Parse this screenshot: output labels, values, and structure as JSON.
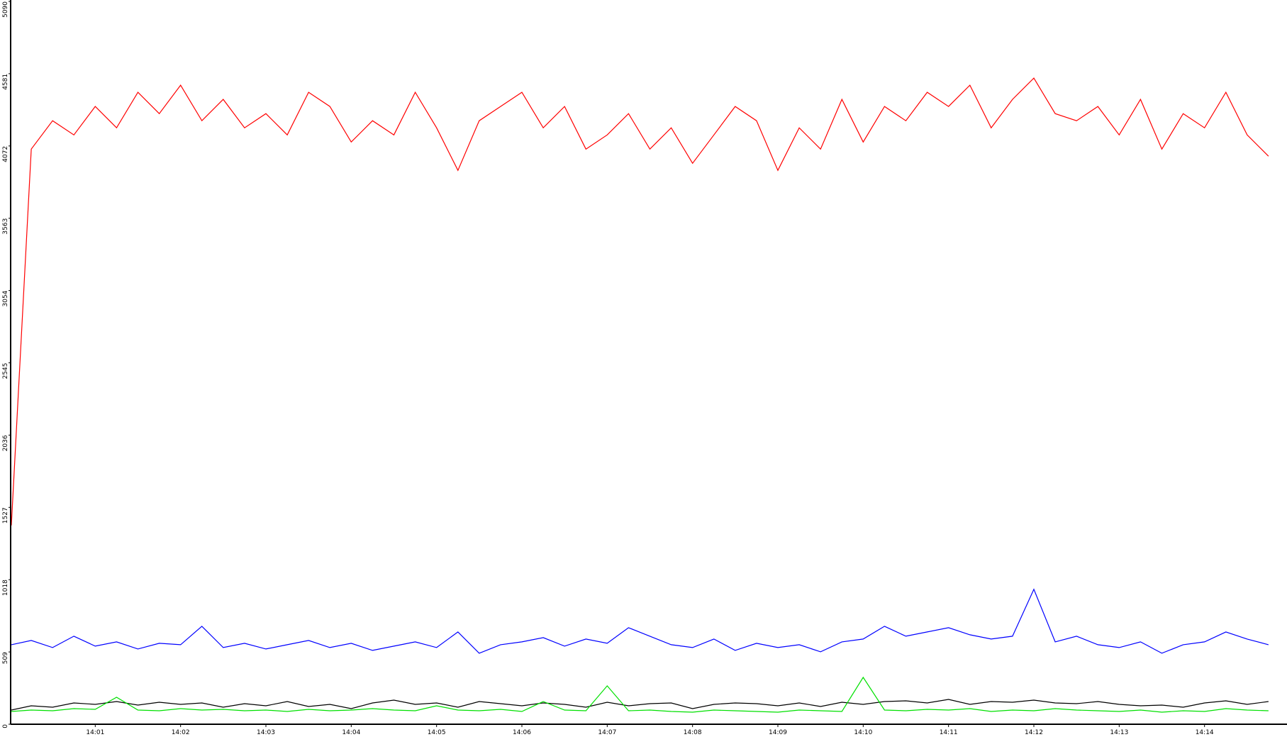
{
  "chart_data": {
    "type": "line",
    "x": [
      "14:00:01",
      "14:00:15",
      "14:00:30",
      "14:00:45",
      "14:01:00",
      "14:01:15",
      "14:01:30",
      "14:01:45",
      "14:02:00",
      "14:02:15",
      "14:02:30",
      "14:02:45",
      "14:03:00",
      "14:03:15",
      "14:03:30",
      "14:03:45",
      "14:04:00",
      "14:04:15",
      "14:04:30",
      "14:04:45",
      "14:05:00",
      "14:05:15",
      "14:05:30",
      "14:05:45",
      "14:06:00",
      "14:06:15",
      "14:06:30",
      "14:06:45",
      "14:07:00",
      "14:07:15",
      "14:07:30",
      "14:07:45",
      "14:08:00",
      "14:08:15",
      "14:08:30",
      "14:08:45",
      "14:09:00",
      "14:09:15",
      "14:09:30",
      "14:09:45",
      "14:10:00",
      "14:10:15",
      "14:10:30",
      "14:10:45",
      "14:11:00",
      "14:11:15",
      "14:11:30",
      "14:11:45",
      "14:12:00",
      "14:12:15",
      "14:12:30",
      "14:12:45",
      "14:13:00",
      "14:13:15",
      "14:13:30",
      "14:13:45",
      "14:14:00",
      "14:14:15",
      "14:14:30",
      "14:14:45"
    ],
    "series": [
      {
        "color": "#ff0000",
        "values": [
          1400,
          4050,
          4250,
          4150,
          4350,
          4200,
          4450,
          4300,
          4500,
          4250,
          4400,
          4200,
          4300,
          4150,
          4450,
          4350,
          4100,
          4250,
          4150,
          4450,
          4200,
          3900,
          4250,
          4350,
          4450,
          4200,
          4350,
          4050,
          4150,
          4300,
          4050,
          4200,
          3950,
          4150,
          4350,
          4250,
          3900,
          4200,
          4050,
          4400,
          4100,
          4350,
          4250,
          4450,
          4350,
          4500,
          4200,
          4400,
          4550,
          4300,
          4250,
          4350,
          4150,
          4400,
          4050,
          4300,
          4200,
          4450,
          4150,
          4000
        ]
      },
      {
        "color": "#0000ff",
        "values": [
          560,
          590,
          540,
          620,
          550,
          580,
          530,
          570,
          560,
          690,
          540,
          570,
          530,
          560,
          590,
          540,
          570,
          520,
          550,
          580,
          540,
          650,
          500,
          560,
          580,
          610,
          550,
          600,
          570,
          680,
          620,
          560,
          540,
          600,
          520,
          570,
          540,
          560,
          510,
          580,
          600,
          690,
          620,
          650,
          680,
          630,
          600,
          620,
          950,
          580,
          620,
          560,
          540,
          580,
          500,
          560,
          580,
          650,
          600,
          560
        ]
      },
      {
        "color": "#000000",
        "values": [
          100,
          130,
          120,
          150,
          140,
          160,
          135,
          155,
          140,
          150,
          120,
          145,
          130,
          160,
          125,
          140,
          110,
          150,
          170,
          140,
          150,
          120,
          160,
          145,
          130,
          150,
          140,
          120,
          155,
          130,
          145,
          150,
          110,
          140,
          150,
          145,
          130,
          150,
          125,
          155,
          140,
          160,
          165,
          150,
          175,
          140,
          160,
          155,
          170,
          150,
          145,
          160,
          140,
          130,
          135,
          120,
          150,
          165,
          140,
          160
        ]
      },
      {
        "color": "#00e000",
        "values": [
          90,
          100,
          95,
          110,
          105,
          190,
          100,
          95,
          110,
          100,
          105,
          95,
          100,
          90,
          105,
          95,
          100,
          110,
          100,
          95,
          130,
          100,
          95,
          105,
          90,
          160,
          100,
          95,
          270,
          95,
          100,
          90,
          85,
          100,
          95,
          90,
          85,
          100,
          95,
          90,
          330,
          100,
          95,
          105,
          100,
          110,
          90,
          100,
          95,
          110,
          100,
          95,
          90,
          100,
          85,
          95,
          90,
          110,
          100,
          95
        ]
      }
    ],
    "xlim": [
      "14:00:01",
      "14:14:58"
    ],
    "xticks": [
      "14:01",
      "14:02",
      "14:03",
      "14:04",
      "14:05",
      "14:06",
      "14:07",
      "14:08",
      "14:09",
      "14:10",
      "14:11",
      "14:12",
      "14:13",
      "14:14"
    ],
    "ylim": [
      0,
      5090
    ],
    "yticks": [
      0,
      509,
      1018,
      1527,
      2036,
      2545,
      3054,
      3563,
      4072,
      4581,
      5090
    ]
  }
}
